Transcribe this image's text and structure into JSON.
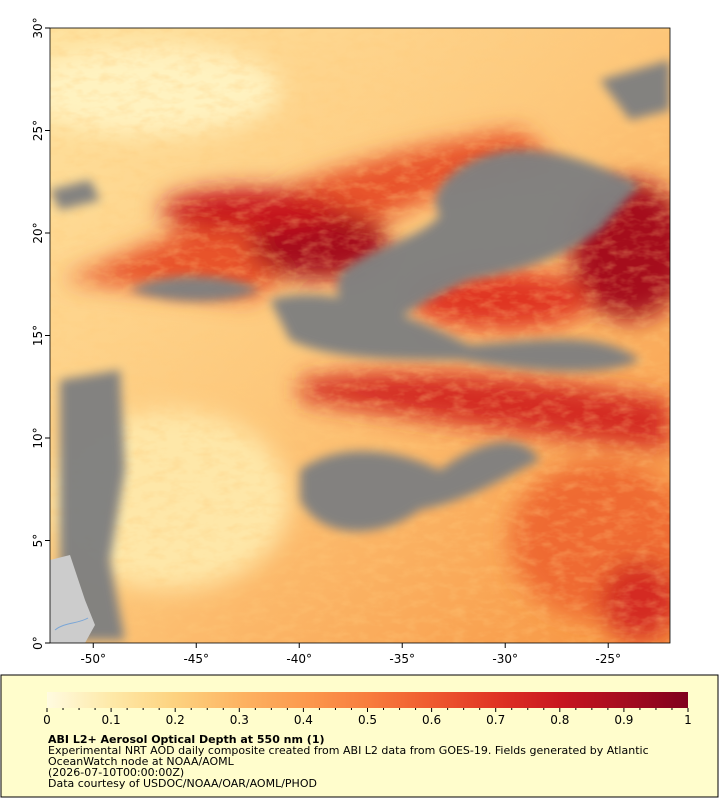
{
  "chart_data": {
    "type": "map",
    "xlim": [
      -52.1,
      -22
    ],
    "ylim": [
      0,
      30
    ],
    "xticks": [
      {
        "value": -50,
        "label": "-50°"
      },
      {
        "value": -45,
        "label": "-45°"
      },
      {
        "value": -40,
        "label": "-40°"
      },
      {
        "value": -35,
        "label": "-35°"
      },
      {
        "value": -30,
        "label": "-30°"
      },
      {
        "value": -25,
        "label": "-25°"
      }
    ],
    "yticks": [
      {
        "value": 0,
        "label": "0°"
      },
      {
        "value": 5,
        "label": "5°"
      },
      {
        "value": 10,
        "label": "10°"
      },
      {
        "value": 15,
        "label": "15°"
      },
      {
        "value": 20,
        "label": "20°"
      },
      {
        "value": 25,
        "label": "25°"
      },
      {
        "value": 30,
        "label": "30°"
      }
    ],
    "colorbar": {
      "lim": [
        0,
        1
      ],
      "ticks": [
        0,
        0.1,
        0.2,
        0.3,
        0.4,
        0.5,
        0.6,
        0.7,
        0.8,
        0.9,
        1
      ],
      "colors": [
        "#fffbe0",
        "#fee9a8",
        "#fdd27f",
        "#fdb462",
        "#fc9a4e",
        "#f87d3e",
        "#ef5a2f",
        "#e03424",
        "#c8161f",
        "#a50c1f",
        "#80001e"
      ]
    },
    "title": "ABI L2+ Aerosol Optical Depth at 550 nm (1)",
    "description": [
      "Experimental NRT AOD daily composite created from ABI L2 data from GOES-19. Fields generated by Atlantic",
      "OceanWatch node at NOAA/AOML"
    ],
    "time": "(2026-07-10T00:00:00Z)",
    "credit": "Data courtesy of USDOC/NOAA/OAR/AOML/PHOD"
  }
}
